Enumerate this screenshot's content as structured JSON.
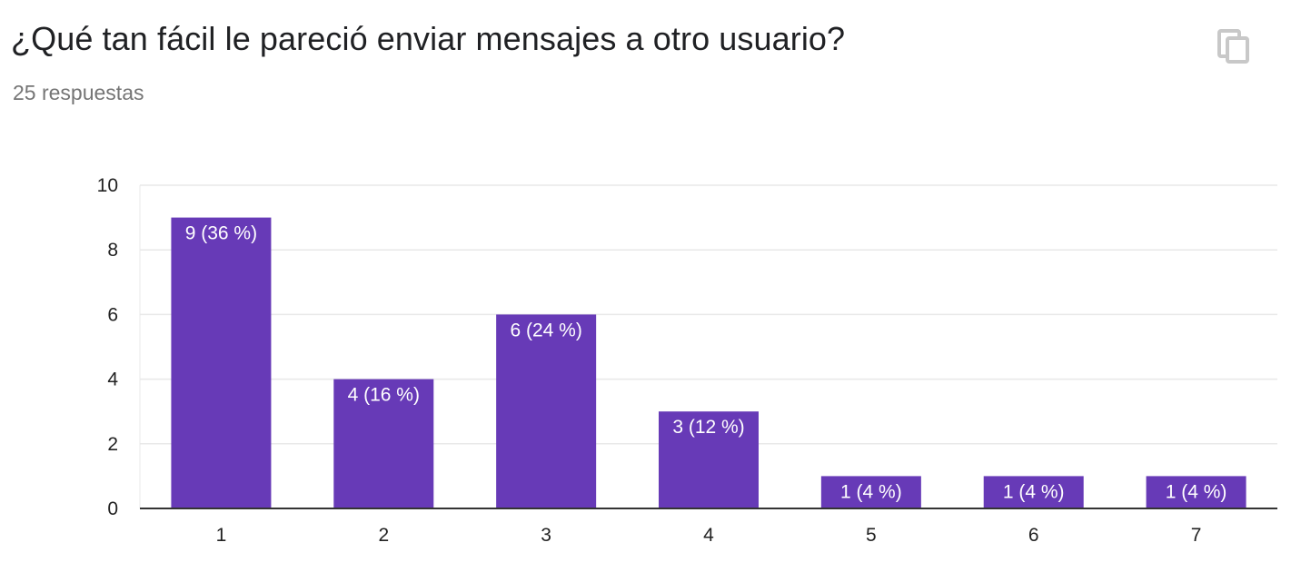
{
  "header": {
    "title": "¿Qué tan fácil le pareció enviar mensajes a otro usuario?",
    "responses": "25 respuestas",
    "copy_icon": "copy-icon"
  },
  "colors": {
    "bar": "#673AB7",
    "grid": "#E8E8E8",
    "axis": "#333333",
    "text": "#222222",
    "muted": "#757575",
    "icon": "#C8C8C8"
  },
  "chart_data": {
    "type": "bar",
    "categories": [
      "1",
      "2",
      "3",
      "4",
      "5",
      "6",
      "7"
    ],
    "values": [
      9,
      4,
      6,
      3,
      1,
      1,
      1
    ],
    "data_labels": [
      "9 (36 %)",
      "4 (16 %)",
      "6 (24 %)",
      "3 (12 %)",
      "1 (4 %)",
      "1 (4 %)",
      "1 (4 %)"
    ],
    "y_ticks": [
      0,
      2,
      4,
      6,
      8,
      10
    ],
    "ylim": [
      0,
      10
    ],
    "grid": true,
    "legend": "none"
  }
}
